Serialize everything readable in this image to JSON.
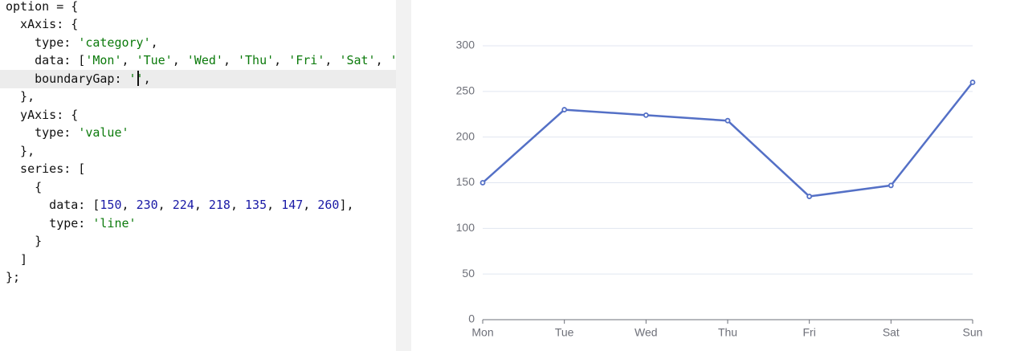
{
  "editor": {
    "lines": [
      [
        {
          "text": "option = {"
        }
      ],
      [
        {
          "text": "  xAxis: {"
        }
      ],
      [
        {
          "text": "    type: "
        },
        {
          "text": "'category'",
          "color": "#0b7a0b"
        },
        {
          "text": ","
        }
      ],
      [
        {
          "text": "    data: ["
        },
        {
          "text": "'Mon'",
          "color": "#0b7a0b"
        },
        {
          "text": ", "
        },
        {
          "text": "'Tue'",
          "color": "#0b7a0b"
        },
        {
          "text": ", "
        },
        {
          "text": "'Wed'",
          "color": "#0b7a0b"
        },
        {
          "text": ", "
        },
        {
          "text": "'Thu'",
          "color": "#0b7a0b"
        },
        {
          "text": ", "
        },
        {
          "text": "'Fri'",
          "color": "#0b7a0b"
        },
        {
          "text": ", "
        },
        {
          "text": "'Sat'",
          "color": "#0b7a0b"
        },
        {
          "text": ", "
        },
        {
          "text": "'",
          "color": "#0b7a0b"
        }
      ],
      [
        {
          "text": "    boundaryGap: "
        },
        {
          "text": "''",
          "color": "#0b7a0b"
        },
        {
          "text": ","
        }
      ],
      [
        {
          "text": "  },"
        }
      ],
      [
        {
          "text": "  yAxis: {"
        }
      ],
      [
        {
          "text": "    type: "
        },
        {
          "text": "'value'",
          "color": "#0b7a0b"
        }
      ],
      [
        {
          "text": "  },"
        }
      ],
      [
        {
          "text": "  series: ["
        }
      ],
      [
        {
          "text": "    {"
        }
      ],
      [
        {
          "text": "      data: ["
        },
        {
          "text": "150",
          "color": "#1a1aa6"
        },
        {
          "text": ", "
        },
        {
          "text": "230",
          "color": "#1a1aa6"
        },
        {
          "text": ", "
        },
        {
          "text": "224",
          "color": "#1a1aa6"
        },
        {
          "text": ", "
        },
        {
          "text": "218",
          "color": "#1a1aa6"
        },
        {
          "text": ", "
        },
        {
          "text": "135",
          "color": "#1a1aa6"
        },
        {
          "text": ", "
        },
        {
          "text": "147",
          "color": "#1a1aa6"
        },
        {
          "text": ", "
        },
        {
          "text": "260",
          "color": "#1a1aa6"
        },
        {
          "text": "],"
        }
      ],
      [
        {
          "text": "      type: "
        },
        {
          "text": "'line'",
          "color": "#0b7a0b"
        }
      ],
      [
        {
          "text": "    }"
        }
      ],
      [
        {
          "text": "  ]"
        }
      ],
      [
        {
          "text": "};"
        }
      ]
    ],
    "highlighted_line": 4
  },
  "chart_data": {
    "type": "line",
    "categories": [
      "Mon",
      "Tue",
      "Wed",
      "Thu",
      "Fri",
      "Sat",
      "Sun"
    ],
    "values": [
      150,
      230,
      224,
      218,
      135,
      147,
      260
    ],
    "color": "#5470c6",
    "ylim": [
      0,
      300
    ],
    "yticks": [
      0,
      50,
      100,
      150,
      200,
      250,
      300
    ],
    "grid": true
  }
}
